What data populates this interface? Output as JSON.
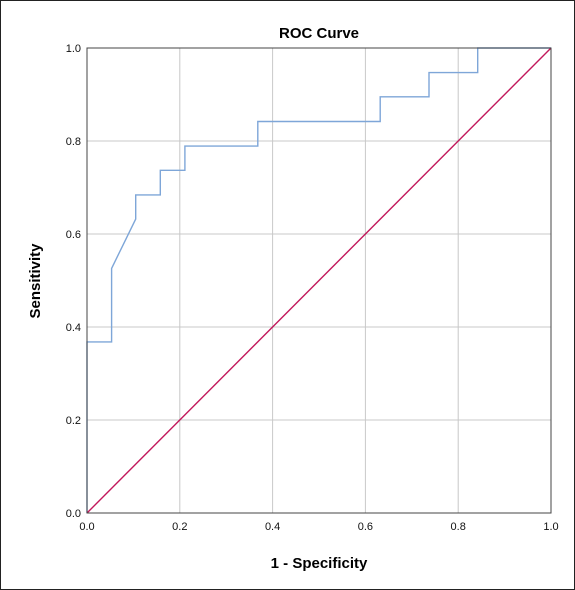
{
  "chart_data": {
    "type": "line",
    "title": "ROC Curve",
    "xlabel": "1 - Specificity",
    "ylabel": "Sensitivity",
    "xlim": [
      0,
      1
    ],
    "ylim": [
      0,
      1
    ],
    "xticks": [
      "0.0",
      "0.2",
      "0.4",
      "0.6",
      "0.8",
      "1.0"
    ],
    "yticks": [
      "0.0",
      "0.2",
      "0.4",
      "0.6",
      "0.8",
      "1.0"
    ],
    "grid": true,
    "series": [
      {
        "color": "#7ea6d8",
        "x": [
          0,
          0,
          0.053,
          0.053,
          0.105,
          0.105,
          0.158,
          0.158,
          0.211,
          0.211,
          0.368,
          0.368,
          0.632,
          0.632,
          0.737,
          0.737,
          0.842,
          0.842,
          1.0
        ],
        "y": [
          0,
          0.368,
          0.368,
          0.526,
          0.632,
          0.684,
          0.684,
          0.737,
          0.737,
          0.789,
          0.789,
          0.842,
          0.842,
          0.895,
          0.895,
          0.947,
          0.947,
          1.0,
          1.0
        ]
      },
      {
        "color": "#c2185b",
        "x": [
          0,
          1
        ],
        "y": [
          0,
          1
        ]
      }
    ]
  }
}
